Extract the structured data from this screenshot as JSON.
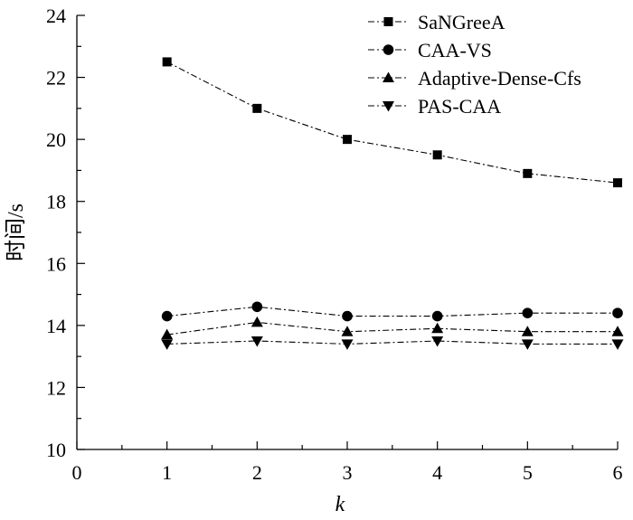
{
  "chart_data": {
    "type": "line",
    "title": "",
    "xlabel": "k",
    "ylabel": "时间/s",
    "xlim": [
      0,
      6
    ],
    "ylim": [
      10,
      24
    ],
    "xticks": [
      0,
      1,
      2,
      3,
      4,
      5,
      6
    ],
    "yticks": [
      10,
      12,
      14,
      16,
      18,
      20,
      22,
      24
    ],
    "x": [
      1,
      2,
      3,
      4,
      5,
      6
    ],
    "grid": false,
    "legend_position": "top-right",
    "series": [
      {
        "name": "SaNGreeA",
        "marker": "square",
        "values": [
          22.5,
          21.0,
          20.0,
          19.5,
          18.9,
          18.6
        ]
      },
      {
        "name": "CAA-VS",
        "marker": "circle",
        "values": [
          14.3,
          14.6,
          14.3,
          14.3,
          14.4,
          14.4
        ]
      },
      {
        "name": "Adaptive-Dense-Cfs",
        "marker": "triangle-up",
        "values": [
          13.7,
          14.1,
          13.8,
          13.9,
          13.8,
          13.8
        ]
      },
      {
        "name": "PAS-CAA",
        "marker": "triangle-down",
        "values": [
          13.4,
          13.5,
          13.4,
          13.5,
          13.4,
          13.4
        ]
      }
    ]
  }
}
